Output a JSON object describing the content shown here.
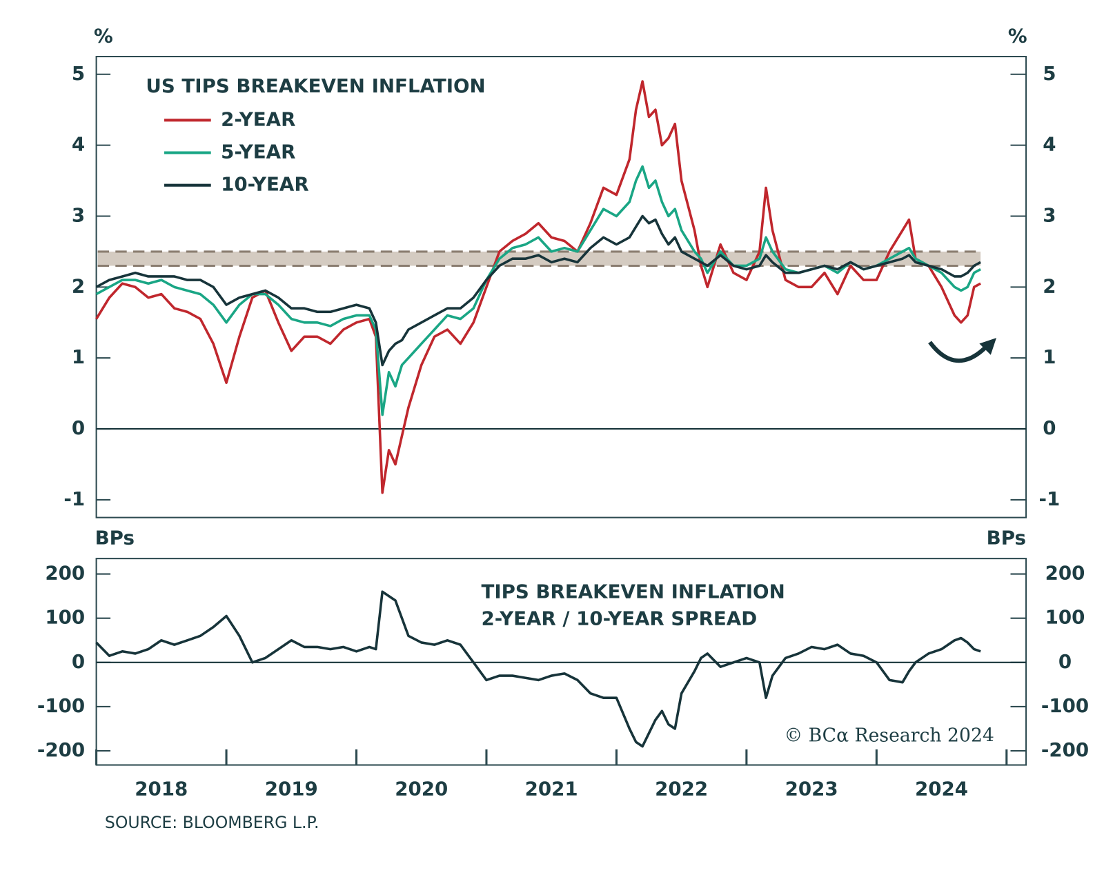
{
  "chart_data": [
    {
      "type": "line",
      "title": "US TIPS BREAKEVEN INFLATION",
      "y_unit": "%",
      "x": [
        2018.0,
        2018.1,
        2018.2,
        2018.3,
        2018.4,
        2018.5,
        2018.6,
        2018.7,
        2018.8,
        2018.9,
        2019.0,
        2019.1,
        2019.2,
        2019.3,
        2019.4,
        2019.5,
        2019.6,
        2019.7,
        2019.8,
        2019.9,
        2020.0,
        2020.1,
        2020.15,
        2020.2,
        2020.25,
        2020.3,
        2020.35,
        2020.4,
        2020.5,
        2020.6,
        2020.7,
        2020.8,
        2020.9,
        2021.0,
        2021.1,
        2021.2,
        2021.3,
        2021.4,
        2021.5,
        2021.6,
        2021.7,
        2021.8,
        2021.9,
        2022.0,
        2022.1,
        2022.15,
        2022.2,
        2022.25,
        2022.3,
        2022.35,
        2022.4,
        2022.45,
        2022.5,
        2022.6,
        2022.65,
        2022.7,
        2022.8,
        2022.9,
        2023.0,
        2023.1,
        2023.15,
        2023.2,
        2023.3,
        2023.4,
        2023.5,
        2023.6,
        2023.7,
        2023.8,
        2023.9,
        2024.0,
        2024.1,
        2024.2,
        2024.25,
        2024.3,
        2024.4,
        2024.5,
        2024.6,
        2024.65,
        2024.7,
        2024.75,
        2024.8
      ],
      "series": [
        {
          "name": "2-YEAR",
          "color": "#c0272d",
          "values": [
            1.55,
            1.85,
            2.05,
            2.0,
            1.85,
            1.9,
            1.7,
            1.65,
            1.55,
            1.2,
            0.65,
            1.3,
            1.85,
            1.95,
            1.5,
            1.1,
            1.3,
            1.3,
            1.2,
            1.4,
            1.5,
            1.55,
            1.3,
            -0.9,
            -0.3,
            -0.5,
            -0.1,
            0.3,
            0.9,
            1.3,
            1.4,
            1.2,
            1.5,
            2.0,
            2.5,
            2.65,
            2.75,
            2.9,
            2.7,
            2.65,
            2.5,
            2.9,
            3.4,
            3.3,
            3.8,
            4.5,
            4.9,
            4.4,
            4.5,
            4.0,
            4.1,
            4.3,
            3.5,
            2.8,
            2.3,
            2.0,
            2.6,
            2.2,
            2.1,
            2.5,
            3.4,
            2.8,
            2.1,
            2.0,
            2.0,
            2.2,
            1.9,
            2.3,
            2.1,
            2.1,
            2.5,
            2.8,
            2.95,
            2.4,
            2.3,
            2.0,
            1.6,
            1.5,
            1.6,
            2.0,
            2.05
          ]
        },
        {
          "name": "5-YEAR",
          "color": "#1aa685",
          "values": [
            1.9,
            2.0,
            2.1,
            2.1,
            2.05,
            2.1,
            2.0,
            1.95,
            1.9,
            1.75,
            1.5,
            1.75,
            1.9,
            1.9,
            1.75,
            1.55,
            1.5,
            1.5,
            1.45,
            1.55,
            1.6,
            1.6,
            1.4,
            0.2,
            0.8,
            0.6,
            0.9,
            1.0,
            1.2,
            1.4,
            1.6,
            1.55,
            1.7,
            2.1,
            2.4,
            2.55,
            2.6,
            2.7,
            2.5,
            2.55,
            2.5,
            2.8,
            3.1,
            3.0,
            3.2,
            3.5,
            3.7,
            3.4,
            3.5,
            3.2,
            3.0,
            3.1,
            2.8,
            2.5,
            2.4,
            2.2,
            2.5,
            2.3,
            2.3,
            2.4,
            2.7,
            2.5,
            2.25,
            2.2,
            2.25,
            2.3,
            2.2,
            2.35,
            2.25,
            2.3,
            2.4,
            2.5,
            2.55,
            2.4,
            2.3,
            2.2,
            2.0,
            1.95,
            2.0,
            2.2,
            2.25
          ]
        },
        {
          "name": "10-YEAR",
          "color": "#17343a",
          "values": [
            2.0,
            2.1,
            2.15,
            2.2,
            2.15,
            2.15,
            2.15,
            2.1,
            2.1,
            2.0,
            1.75,
            1.85,
            1.9,
            1.95,
            1.85,
            1.7,
            1.7,
            1.65,
            1.65,
            1.7,
            1.75,
            1.7,
            1.5,
            0.9,
            1.1,
            1.2,
            1.25,
            1.4,
            1.5,
            1.6,
            1.7,
            1.7,
            1.85,
            2.1,
            2.3,
            2.4,
            2.4,
            2.45,
            2.35,
            2.4,
            2.35,
            2.55,
            2.7,
            2.6,
            2.7,
            2.85,
            3.0,
            2.9,
            2.95,
            2.75,
            2.6,
            2.7,
            2.5,
            2.4,
            2.35,
            2.3,
            2.45,
            2.3,
            2.25,
            2.3,
            2.45,
            2.35,
            2.2,
            2.2,
            2.25,
            2.3,
            2.25,
            2.35,
            2.25,
            2.3,
            2.35,
            2.4,
            2.45,
            2.35,
            2.3,
            2.25,
            2.15,
            2.15,
            2.2,
            2.3,
            2.35
          ]
        }
      ],
      "band": [
        2.3,
        2.5
      ],
      "xlim": [
        2018.0,
        2025.15
      ],
      "ylim": [
        -1.25,
        5.25
      ],
      "yticks": [
        -1,
        0,
        1,
        2,
        3,
        4,
        5
      ],
      "zero_line": true,
      "legend": "upper left"
    },
    {
      "type": "line",
      "title": "TIPS BREAKEVEN INFLATION",
      "subtitle": "2-YEAR / 10-YEAR SPREAD",
      "y_unit": "BPs",
      "color": "#17343a",
      "x": [
        2018.0,
        2018.1,
        2018.2,
        2018.3,
        2018.4,
        2018.5,
        2018.6,
        2018.7,
        2018.8,
        2018.9,
        2019.0,
        2019.1,
        2019.2,
        2019.3,
        2019.4,
        2019.5,
        2019.6,
        2019.7,
        2019.8,
        2019.9,
        2020.0,
        2020.1,
        2020.15,
        2020.2,
        2020.25,
        2020.3,
        2020.35,
        2020.4,
        2020.5,
        2020.6,
        2020.7,
        2020.8,
        2020.9,
        2021.0,
        2021.1,
        2021.2,
        2021.3,
        2021.4,
        2021.5,
        2021.6,
        2021.7,
        2021.8,
        2021.9,
        2022.0,
        2022.1,
        2022.15,
        2022.2,
        2022.25,
        2022.3,
        2022.35,
        2022.4,
        2022.45,
        2022.5,
        2022.6,
        2022.65,
        2022.7,
        2022.8,
        2022.9,
        2023.0,
        2023.1,
        2023.15,
        2023.2,
        2023.3,
        2023.4,
        2023.5,
        2023.6,
        2023.7,
        2023.8,
        2023.9,
        2024.0,
        2024.1,
        2024.2,
        2024.25,
        2024.3,
        2024.4,
        2024.5,
        2024.6,
        2024.65,
        2024.7,
        2024.75,
        2024.8
      ],
      "values": [
        45,
        15,
        25,
        20,
        30,
        50,
        40,
        50,
        60,
        80,
        105,
        60,
        0,
        10,
        30,
        50,
        35,
        35,
        30,
        35,
        25,
        35,
        30,
        160,
        150,
        140,
        100,
        60,
        45,
        40,
        50,
        40,
        0,
        -40,
        -30,
        -30,
        -35,
        -40,
        -30,
        -25,
        -40,
        -70,
        -80,
        -80,
        -150,
        -180,
        -190,
        -160,
        -130,
        -110,
        -140,
        -150,
        -70,
        -20,
        10,
        20,
        -10,
        0,
        10,
        0,
        -80,
        -30,
        10,
        20,
        35,
        30,
        40,
        20,
        15,
        0,
        -40,
        -45,
        -20,
        0,
        20,
        30,
        50,
        55,
        45,
        30,
        25
      ],
      "xlim": [
        2018.0,
        2025.15
      ],
      "ylim": [
        -232,
        235
      ],
      "yticks": [
        -200,
        -100,
        0,
        100,
        200
      ],
      "zero_line": true,
      "xticks": [
        {
          "value": 2018.5,
          "label": "2018"
        },
        {
          "value": 2019.5,
          "label": "2019"
        },
        {
          "value": 2020.5,
          "label": "2020"
        },
        {
          "value": 2021.5,
          "label": "2021"
        },
        {
          "value": 2022.5,
          "label": "2022"
        },
        {
          "value": 2023.5,
          "label": "2023"
        },
        {
          "value": 2024.5,
          "label": "2024"
        }
      ]
    }
  ],
  "source": "SOURCE: BLOOMBERG L.P.",
  "copyright": "© BCα Research 2024"
}
